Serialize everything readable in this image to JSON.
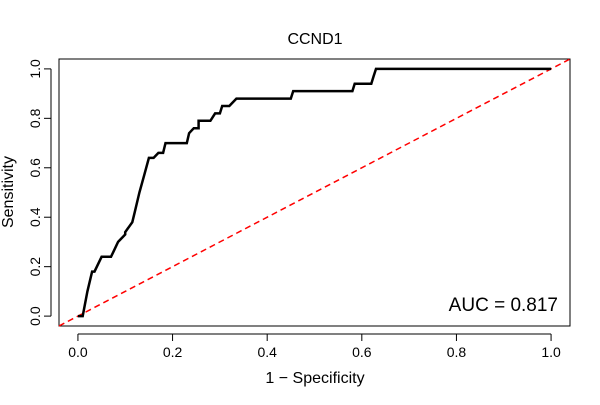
{
  "chart_data": {
    "type": "line",
    "title": "CCND1",
    "xlabel": "1 − Specificity",
    "ylabel": "Sensitivity",
    "xlim": [
      -0.04,
      1.04
    ],
    "ylim": [
      -0.04,
      1.04
    ],
    "x_ticks": [
      "0.0",
      "0.2",
      "0.4",
      "0.6",
      "0.8",
      "1.0"
    ],
    "y_ticks": [
      "0.0",
      "0.2",
      "0.4",
      "0.6",
      "0.8",
      "1.0"
    ],
    "annotation": "AUC = 0.817",
    "grid": false,
    "series": [
      {
        "line_color": "#000000",
        "line_style": "solid",
        "x": [
          0.0,
          0.01,
          0.02,
          0.03,
          0.035,
          0.05,
          0.07,
          0.075,
          0.085,
          0.1,
          0.1,
          0.115,
          0.12,
          0.13,
          0.14,
          0.15,
          0.16,
          0.17,
          0.18,
          0.185,
          0.23,
          0.235,
          0.245,
          0.255,
          0.255,
          0.28,
          0.29,
          0.3,
          0.305,
          0.32,
          0.325,
          0.335,
          0.45,
          0.455,
          0.58,
          0.585,
          0.62,
          0.625,
          0.63,
          0.64,
          1.0
        ],
        "y": [
          0.0,
          0.0,
          0.1,
          0.18,
          0.18,
          0.24,
          0.24,
          0.26,
          0.3,
          0.33,
          0.34,
          0.38,
          0.42,
          0.5,
          0.57,
          0.64,
          0.64,
          0.66,
          0.66,
          0.7,
          0.7,
          0.74,
          0.76,
          0.76,
          0.79,
          0.79,
          0.82,
          0.82,
          0.85,
          0.85,
          0.86,
          0.88,
          0.88,
          0.91,
          0.91,
          0.94,
          0.94,
          0.97,
          1.0,
          1.0,
          1.0
        ]
      },
      {
        "line_color": "#ff0000",
        "line_style": "dashed",
        "x": [
          -0.04,
          1.04
        ],
        "y": [
          -0.04,
          1.04
        ]
      }
    ]
  }
}
